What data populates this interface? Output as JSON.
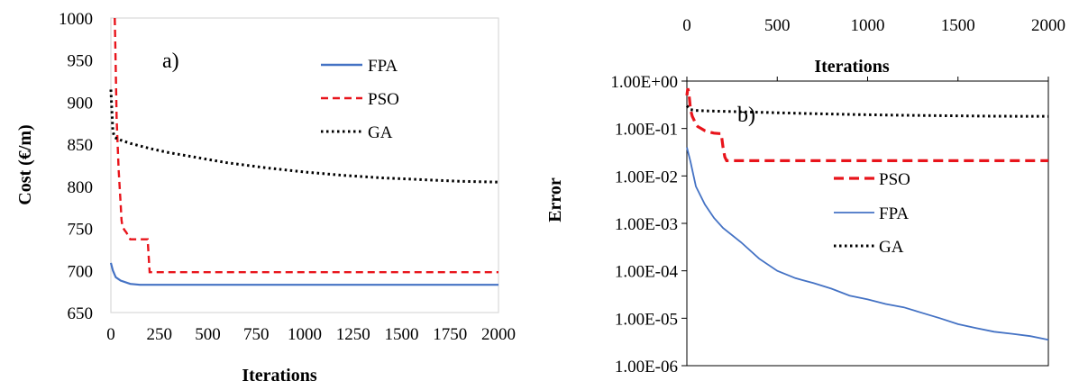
{
  "colors": {
    "FPA": "#4472C4",
    "PSO": "#E8141B",
    "GA": "#000000",
    "frame": "#d9d9d9"
  },
  "chart_data": [
    {
      "type": "line",
      "panel_label": "a)",
      "xlabel": "Iterations",
      "ylabel": "Cost (€/m)",
      "xlim": [
        0,
        2000
      ],
      "ylim": [
        650,
        1000
      ],
      "x_ticks": [
        "0",
        "250",
        "500",
        "750",
        "1000",
        "1250",
        "1500",
        "1750",
        "2000"
      ],
      "y_ticks": [
        "650",
        "700",
        "750",
        "800",
        "850",
        "900",
        "950",
        "1000"
      ],
      "grid": false,
      "legend_position": "right",
      "series": [
        {
          "name": "FPA",
          "style": "solid",
          "color": "#4472C4",
          "x": [
            0,
            10,
            25,
            50,
            100,
            150,
            2000
          ],
          "y": [
            709,
            700,
            692,
            688,
            684,
            683,
            683
          ]
        },
        {
          "name": "PSO",
          "style": "dashed",
          "color": "#E8141B",
          "x": [
            20,
            22,
            25,
            30,
            40,
            50,
            55,
            60,
            70,
            80,
            100,
            190,
            200,
            2000
          ],
          "y": [
            1000,
            980,
            940,
            880,
            820,
            780,
            760,
            752,
            748,
            745,
            737,
            737,
            698,
            698
          ]
        },
        {
          "name": "GA",
          "style": "dotted",
          "color": "#000000",
          "x": [
            0,
            5,
            10,
            20,
            50,
            100,
            200,
            300,
            400,
            500,
            600,
            800,
            1000,
            1200,
            1400,
            1600,
            1800,
            2000
          ],
          "y": [
            915,
            890,
            865,
            858,
            855,
            851,
            845,
            840,
            836,
            832,
            828,
            822,
            817,
            813,
            810,
            808,
            806,
            805
          ]
        }
      ]
    },
    {
      "type": "line",
      "panel_label": "b)",
      "xlabel": "Iterations",
      "ylabel": "Error",
      "xlim": [
        0,
        2000
      ],
      "yscale": "log",
      "ylim": [
        1e-06,
        1
      ],
      "x_ticks": [
        "0",
        "500",
        "1000",
        "1500",
        "2000"
      ],
      "x_axis_position": "top",
      "y_ticks": [
        "1.00E+00",
        "1.00E-01",
        "1.00E-02",
        "1.00E-03",
        "1.00E-04",
        "1.00E-05",
        "1.00E-06"
      ],
      "grid": false,
      "legend_position": "center",
      "series": [
        {
          "name": "PSO",
          "style": "dashed",
          "color": "#E8141B",
          "x": [
            0,
            5,
            10,
            15,
            20,
            30,
            40,
            50,
            60,
            80,
            100,
            120,
            150,
            180,
            190,
            200,
            210,
            220,
            250,
            2000
          ],
          "y": [
            0.5,
            0.7,
            0.6,
            0.4,
            0.25,
            0.18,
            0.15,
            0.12,
            0.11,
            0.1,
            0.09,
            0.085,
            0.08,
            0.078,
            0.078,
            0.04,
            0.025,
            0.021,
            0.021,
            0.021
          ]
        },
        {
          "name": "FPA",
          "style": "solid",
          "color": "#4472C4",
          "x": [
            0,
            20,
            50,
            100,
            150,
            200,
            300,
            400,
            500,
            600,
            700,
            800,
            900,
            1000,
            1100,
            1200,
            1300,
            1400,
            1500,
            1600,
            1700,
            1800,
            1900,
            2000
          ],
          "y": [
            0.04,
            0.02,
            0.006,
            0.0025,
            0.0013,
            0.0008,
            0.0004,
            0.00018,
            0.0001,
            7e-05,
            5.5e-05,
            4.2e-05,
            3e-05,
            2.5e-05,
            2e-05,
            1.7e-05,
            1.3e-05,
            1e-05,
            7.5e-06,
            6.2e-06,
            5.2e-06,
            4.7e-06,
            4.2e-06,
            3.5e-06
          ]
        },
        {
          "name": "GA",
          "style": "dotted",
          "color": "#000000",
          "x": [
            0,
            20,
            50,
            100,
            200,
            300,
            500,
            700,
            1000,
            1200,
            1500,
            1700,
            2000
          ],
          "y": [
            0.3,
            0.25,
            0.24,
            0.235,
            0.23,
            0.225,
            0.215,
            0.205,
            0.195,
            0.19,
            0.185,
            0.182,
            0.18
          ]
        }
      ]
    }
  ]
}
